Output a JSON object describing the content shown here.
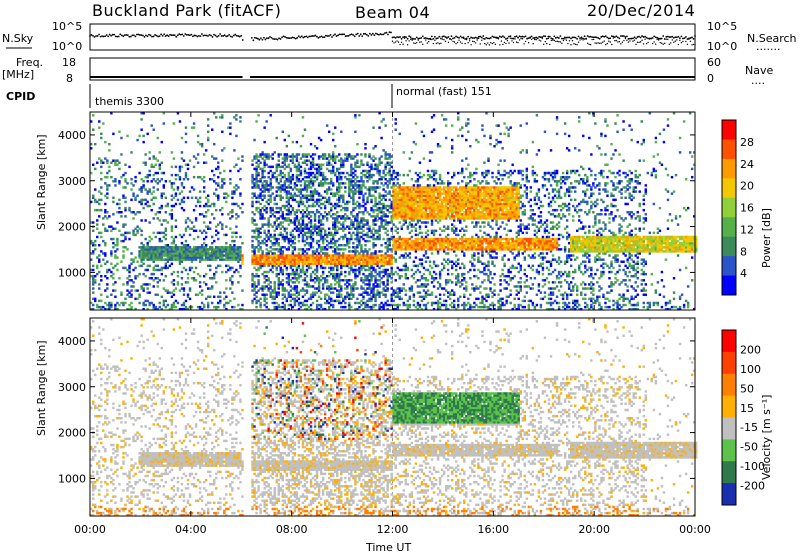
{
  "header": {
    "site": "Buckland Park (fitACF)",
    "beam": "Beam 04",
    "date": "20/Dec/2014"
  },
  "side_labels": {
    "nsky": "N.Sky",
    "nsearch": "N.Search",
    "freq": "Freq.",
    "freq_unit": "[MHz]",
    "nave": "Nave",
    "cpid": "CPID"
  },
  "top_axes": {
    "noise_left_ticks": [
      "10^5",
      "10^0"
    ],
    "noise_right_ticks": [
      "10^5",
      "10^0"
    ],
    "freq_left_ticks": [
      "18",
      "8"
    ],
    "nave_right_ticks": [
      "60",
      "0"
    ]
  },
  "cpid_labels": [
    {
      "text": "themis 3300",
      "start_hour": 0.0
    },
    {
      "text": "normal (fast) 151",
      "start_hour": 12.0
    }
  ],
  "chart_data": [
    {
      "type": "heatmap",
      "name": "power",
      "xlabel": "Time UT",
      "ylabel": "Slant Range [km]",
      "xlim_hours": [
        0,
        24
      ],
      "ylim": [
        180,
        4500
      ],
      "yticks": [
        1000,
        2000,
        3000,
        4000
      ],
      "colorbar": {
        "label": "Power [dB]",
        "ticks": [
          "4",
          "8",
          "12",
          "16",
          "20",
          "24",
          "28"
        ],
        "range": [
          0,
          30
        ],
        "colors": [
          "#0000ff",
          "#2a55c8",
          "#3a8a5a",
          "#55b04a",
          "#8fd03a",
          "#f4c800",
          "#ff9a00",
          "#ff5000",
          "#ff0000"
        ]
      },
      "features": [
        {
          "t_start": 2.0,
          "t_end": 6.0,
          "range_center": 1400,
          "range_width": 300,
          "level_db": 12
        },
        {
          "t_start": 6.0,
          "t_end": 12.0,
          "range_center": 1250,
          "range_width": 250,
          "level_db": 28
        },
        {
          "t_start": 12.0,
          "t_end": 18.5,
          "range_center": 1600,
          "range_width": 250,
          "level_db": 27
        },
        {
          "t_start": 12.0,
          "t_end": 17.0,
          "range_center": 2500,
          "range_width": 700,
          "level_db": 26
        },
        {
          "t_start": 19.0,
          "t_end": 24.0,
          "range_center": 1600,
          "range_width": 400,
          "level_db": 22
        }
      ]
    },
    {
      "type": "heatmap",
      "name": "velocity",
      "xlabel": "Time UT",
      "ylabel": "Slant Range [km]",
      "xlim_hours": [
        0,
        24
      ],
      "ylim": [
        180,
        4500
      ],
      "yticks": [
        1000,
        2000,
        3000,
        4000
      ],
      "xticks": [
        "00:00",
        "04:00",
        "08:00",
        "12:00",
        "16:00",
        "20:00",
        "00:00"
      ],
      "colorbar": {
        "label": "Velocity [m s⁻¹]",
        "ticks": [
          "200",
          "100",
          "50",
          "15",
          "-15",
          "-50",
          "-100",
          "-200"
        ],
        "colors": [
          "#1a2fb0",
          "#2e7a4a",
          "#5cc24c",
          "#c0c0c0",
          "#ffb000",
          "#ff8000",
          "#ff4000",
          "#ff0000"
        ]
      }
    }
  ]
}
